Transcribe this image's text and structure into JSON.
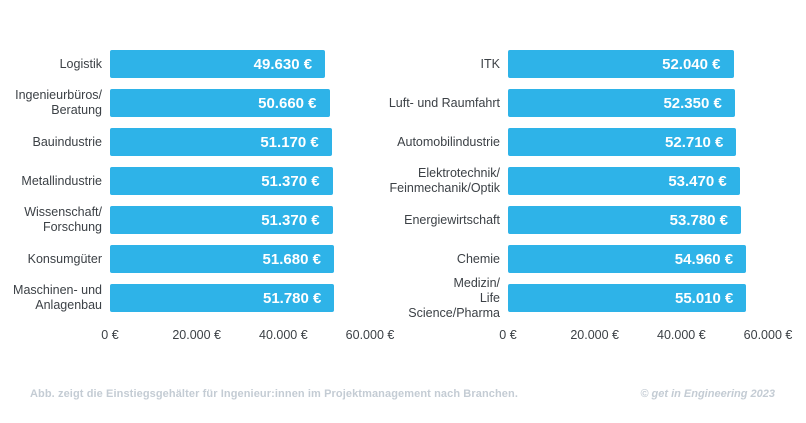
{
  "colors": {
    "background": "#FFFFFF",
    "bar": "#2EB3E8",
    "category_text": "#3C4146",
    "axis_text": "#3C4146",
    "value_text": "#FFFFFF",
    "footer_text": "#C4CCD4"
  },
  "footer": {
    "caption": "Abb. zeigt die Einstiegsgehälter für Ingenieur:innen im Projektmanagement nach Branchen.",
    "credit": "© get in Engineering 2023"
  },
  "chart_data": [
    {
      "type": "bar",
      "orientation": "horizontal",
      "title": "",
      "xlabel": "",
      "ylabel": "",
      "grid": false,
      "legend": false,
      "xlim": [
        0,
        60000
      ],
      "xticks": [
        "0 €",
        "20.000 €",
        "40.000 €",
        "60.000 €"
      ],
      "categories": [
        "Logistik",
        "Ingenieurbüros/\nBeratung",
        "Bauindustrie",
        "Metallindustrie",
        "Wissenschaft/\nForschung",
        "Konsumgüter",
        "Maschinen- und\nAnlagenbau"
      ],
      "values": [
        49630,
        50660,
        51170,
        51370,
        51370,
        51680,
        51780
      ],
      "value_labels": [
        "49.630 €",
        "50.660 €",
        "51.170 €",
        "51.370 €",
        "51.370 €",
        "51.680 €",
        "51.780 €"
      ]
    },
    {
      "type": "bar",
      "orientation": "horizontal",
      "title": "",
      "xlabel": "",
      "ylabel": "",
      "grid": false,
      "legend": false,
      "xlim": [
        0,
        60000
      ],
      "xticks": [
        "0 €",
        "20.000 €",
        "40.000 €",
        "60.000 €"
      ],
      "categories": [
        "ITK",
        "Luft- und Raumfahrt",
        "Automobilindustrie",
        "Elektrotechnik/\nFeinmechanik/Optik",
        "Energiewirtschaft",
        "Chemie",
        "Medizin/\nLife Science/Pharma"
      ],
      "values": [
        52040,
        52350,
        52710,
        53470,
        53780,
        54960,
        55010
      ],
      "value_labels": [
        "52.040 €",
        "52.350 €",
        "52.710 €",
        "53.470 €",
        "53.780 €",
        "54.960 €",
        "55.010 €"
      ]
    }
  ]
}
